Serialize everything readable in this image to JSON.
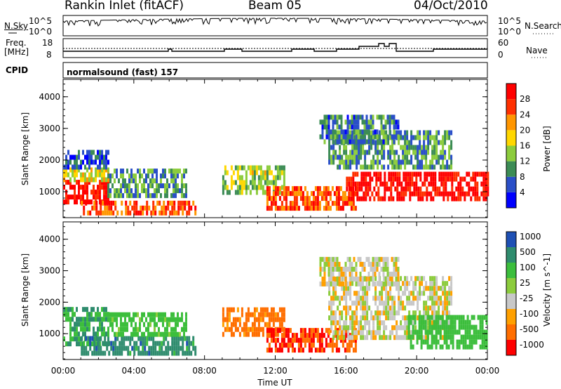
{
  "header": {
    "radar": "Rankin Inlet (fitACF)",
    "beam": "Beam 05",
    "date": "04/Oct/2010"
  },
  "status": {
    "nsky_label": "N.Sky",
    "nsearch_label": "N.Search",
    "count_ticks": [
      "10^5",
      "10^0"
    ],
    "freq_label_1": "Freq.",
    "freq_label_2": "[MHz]",
    "freq_ticks": [
      "18",
      "8"
    ],
    "nave_label": "Nave",
    "nave_ticks": [
      "60",
      "0"
    ],
    "cpid_label": "CPID",
    "cpid_value": "normalsound (fast) 157"
  },
  "chart_data": [
    {
      "type": "heatmap",
      "title": "",
      "xlabel": "",
      "ylabel": "Slant Range [km]",
      "xlim": [
        "00:00",
        "24:00"
      ],
      "ylim": [
        180,
        4550
      ],
      "yticks": [
        "1000",
        "2000",
        "3000",
        "4000"
      ],
      "colorbar": {
        "label": "Power [dB]",
        "ticks": [
          "4",
          "8",
          "12",
          "16",
          "20",
          "24",
          "28"
        ],
        "range": [
          0,
          30
        ],
        "colors": [
          "#0000ff",
          "#2a4fc8",
          "#3c8c55",
          "#8ccc3c",
          "#ffd700",
          "#ff9600",
          "#ff3000",
          "#ff0000"
        ]
      },
      "regions": [
        {
          "t0": 0.0,
          "t1": 2.5,
          "r0": 600,
          "r1": 1300,
          "value": 28
        },
        {
          "t0": 0.0,
          "t1": 2.5,
          "r0": 1300,
          "r1": 1700,
          "value": 16
        },
        {
          "t0": 0.0,
          "t1": 2.5,
          "r0": 1700,
          "r1": 2200,
          "value": 6
        },
        {
          "t0": 1.0,
          "t1": 7.5,
          "r0": 250,
          "r1": 650,
          "value": 24
        },
        {
          "t0": 2.5,
          "t1": 7.0,
          "r0": 800,
          "r1": 1700,
          "value": 10
        },
        {
          "t0": 9.0,
          "t1": 12.5,
          "r0": 900,
          "r1": 1700,
          "value": 14
        },
        {
          "t0": 11.5,
          "t1": 16.5,
          "r0": 400,
          "r1": 1100,
          "value": 24
        },
        {
          "t0": 16.0,
          "t1": 24.0,
          "r0": 700,
          "r1": 1600,
          "value": 28
        },
        {
          "t0": 15.0,
          "t1": 22.0,
          "r0": 1700,
          "r1": 2800,
          "value": 10
        },
        {
          "t0": 14.5,
          "t1": 19.0,
          "r0": 2500,
          "r1": 3300,
          "value": 8
        }
      ]
    },
    {
      "type": "heatmap",
      "title": "",
      "xlabel": "Time UT",
      "ylabel": "Slant Range [km]",
      "xlim": [
        "00:00",
        "24:00"
      ],
      "ylim": [
        180,
        4550
      ],
      "xticks": [
        "00:00",
        "04:00",
        "08:00",
        "12:00",
        "16:00",
        "20:00",
        "00:00"
      ],
      "yticks": [
        "1000",
        "2000",
        "3000",
        "4000"
      ],
      "colorbar": {
        "label": "Velocity [m s^-1]",
        "ticks": [
          "1000",
          "500",
          "100",
          "25",
          "-25",
          "-100",
          "-500",
          "-1000"
        ],
        "colors": [
          "#1e50b4",
          "#2f8c6e",
          "#3cbe3c",
          "#8ccc3c",
          "#c8c8c8",
          "#ffa000",
          "#ff6e00",
          "#ff0000"
        ]
      },
      "regions": [
        {
          "t0": 0.0,
          "t1": 2.5,
          "r0": 600,
          "r1": 1700,
          "value": 300
        },
        {
          "t0": 1.0,
          "t1": 7.5,
          "r0": 300,
          "r1": 900,
          "value": 500
        },
        {
          "t0": 2.5,
          "t1": 7.0,
          "r0": 900,
          "r1": 1600,
          "value": 100
        },
        {
          "t0": 9.0,
          "t1": 12.5,
          "r0": 900,
          "r1": 1700,
          "value": -100
        },
        {
          "t0": 11.5,
          "t1": 16.5,
          "r0": 400,
          "r1": 1100,
          "value": -300
        },
        {
          "t0": 15.0,
          "t1": 22.0,
          "r0": 800,
          "r1": 2800,
          "value": 0
        },
        {
          "t0": 19.5,
          "t1": 24.0,
          "r0": 500,
          "r1": 1500,
          "value": 200
        },
        {
          "t0": 14.5,
          "t1": 19.0,
          "r0": 2500,
          "r1": 3300,
          "value": 0
        }
      ]
    }
  ]
}
